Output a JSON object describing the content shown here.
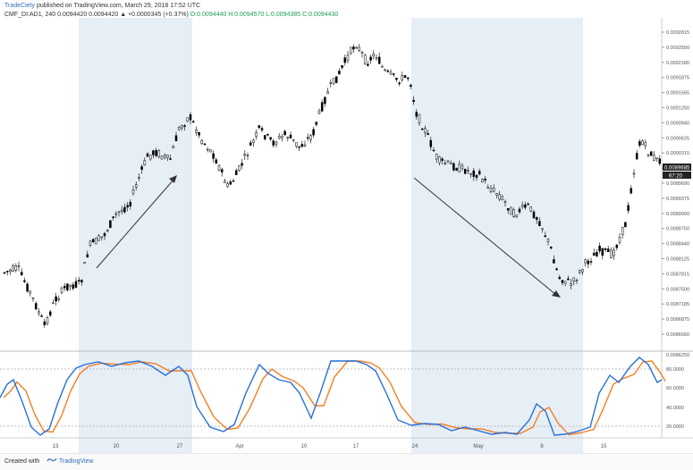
{
  "header": {
    "publisher": "TradeCiety",
    "published_text": "published on TradingView.com, March 29, 2018 17:52 UTC",
    "symbol": "CMF_DI:AD1, 240",
    "price_line": "0.0094420 0.0094420 ▲ +0.0000345 (+0.37%)",
    "ohlc": "O:0.0094440 H:0.0094570 L:0.0094385 C:0.0094430"
  },
  "price_axis": {
    "labels": [
      "0.0092815",
      "0.0092500",
      "0.0092180",
      "0.0091875",
      "0.0091565",
      "0.0091250",
      "0.0090940",
      "0.0090625",
      "0.0090315",
      "0.0090000",
      "0.0089690",
      "0.0089375",
      "0.0089060",
      "0.0088750",
      "0.0088440",
      "0.0088125",
      "0.0087815",
      "0.0087500",
      "0.0087185",
      "0.0086875",
      "0.0086560"
    ],
    "current_price": "0.0089685",
    "current_secondary": "67:20"
  },
  "indicator_axis": {
    "labels": [
      "80.0000",
      "60.0000",
      "40.0000",
      "20.0000"
    ],
    "top_label": "0.0086250"
  },
  "time_axis": {
    "labels": [
      "13",
      "20",
      "27",
      "Apr",
      "10",
      "17",
      "24",
      "May",
      "8",
      "15"
    ]
  },
  "footer": {
    "created_with": "Created with",
    "brand": "TradingView"
  },
  "colors": {
    "up": "#ffffff",
    "down": "#000000",
    "highlight": "#e6eef6",
    "k_line": "#2a6fd6",
    "d_line": "#f27f22",
    "grid": "#e8e8e8",
    "axis": "#999999"
  },
  "icons": [
    "tradingview-logo-icon",
    "arrow-up-icon",
    "arrow-down-icon"
  ]
}
